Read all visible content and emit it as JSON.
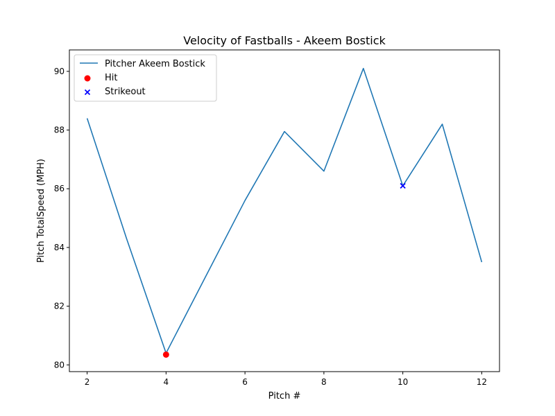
{
  "chart_data": {
    "type": "line",
    "title": "Velocity of Fastballs - Akeem Bostick",
    "xlabel": "Pitch #",
    "ylabel": "Pitch TotalSpeed (MPH)",
    "xlim": [
      1.55,
      12.45
    ],
    "ylim": [
      79.77,
      90.73
    ],
    "xticks": [
      2,
      4,
      6,
      8,
      10,
      12
    ],
    "yticks": [
      80,
      82,
      84,
      86,
      88,
      90
    ],
    "grid": false,
    "legend_position": "top-left",
    "series": [
      {
        "name": "Pitcher Akeem Bostick",
        "kind": "line",
        "color": "#1f77b4",
        "x": [
          2,
          3,
          4,
          5,
          6,
          7,
          8,
          9,
          10,
          11,
          12
        ],
        "y": [
          88.4,
          84.3,
          80.4,
          83.0,
          85.6,
          87.95,
          86.6,
          90.1,
          86.1,
          88.2,
          83.5
        ]
      },
      {
        "name": "Hit",
        "kind": "scatter",
        "marker": "circle",
        "color": "#ff0000",
        "x": [
          4
        ],
        "y": [
          80.35
        ]
      },
      {
        "name": "Strikeout",
        "kind": "scatter",
        "marker": "x",
        "color": "#0000ff",
        "x": [
          10
        ],
        "y": [
          86.1
        ]
      }
    ]
  }
}
